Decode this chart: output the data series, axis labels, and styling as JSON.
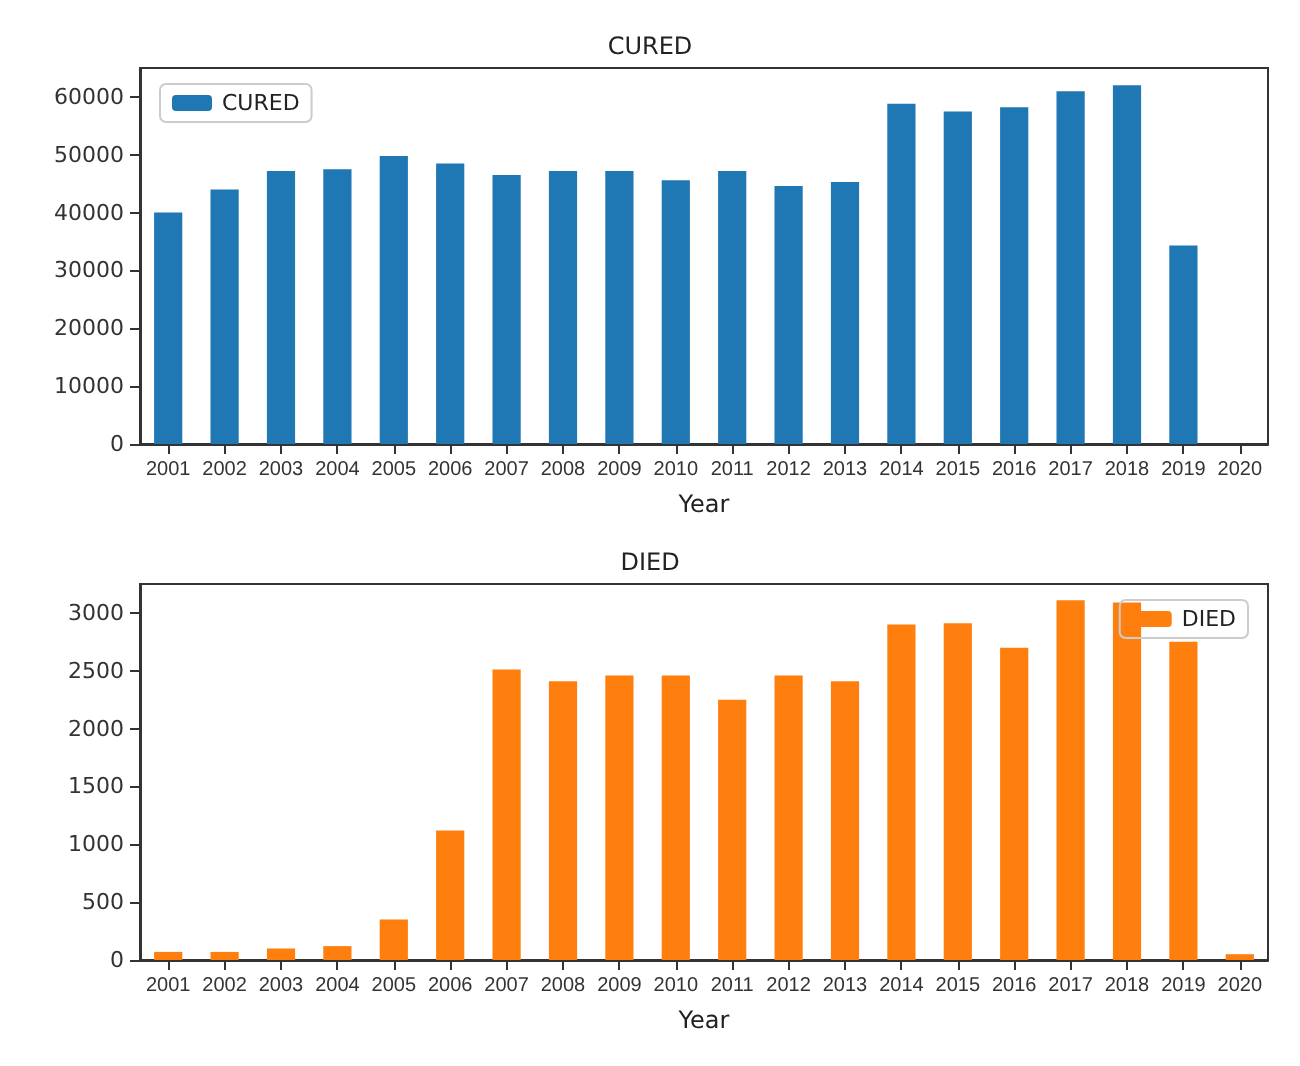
{
  "chart_data": [
    {
      "type": "bar",
      "title": "CURED",
      "xlabel": "Year",
      "categories": [
        "2001",
        "2002",
        "2003",
        "2004",
        "2005",
        "2006",
        "2007",
        "2008",
        "2009",
        "2010",
        "2011",
        "2012",
        "2013",
        "2014",
        "2015",
        "2016",
        "2017",
        "2018",
        "2019",
        "2020"
      ],
      "series": [
        {
          "name": "CURED",
          "color": "#1f77b4",
          "values": [
            40000,
            44000,
            47200,
            47500,
            49800,
            48500,
            46500,
            47200,
            47200,
            45600,
            47200,
            44600,
            45300,
            58800,
            57500,
            58200,
            61000,
            62000,
            34300,
            0
          ]
        }
      ],
      "ylim": [
        0,
        65000
      ],
      "yticks": [
        0,
        10000,
        20000,
        30000,
        40000,
        50000,
        60000
      ],
      "grid": false,
      "legend": "top left"
    },
    {
      "type": "bar",
      "title": "DIED",
      "xlabel": "Year",
      "categories": [
        "2001",
        "2002",
        "2003",
        "2004",
        "2005",
        "2006",
        "2007",
        "2008",
        "2009",
        "2010",
        "2011",
        "2012",
        "2013",
        "2014",
        "2015",
        "2016",
        "2017",
        "2018",
        "2019",
        "2020"
      ],
      "series": [
        {
          "name": "DIED",
          "color": "#ff7f0e",
          "values": [
            70,
            70,
            100,
            120,
            350,
            1120,
            2510,
            2410,
            2460,
            2460,
            2250,
            2460,
            2410,
            2900,
            2910,
            2700,
            3110,
            3090,
            2750,
            50
          ]
        }
      ],
      "ylim": [
        0,
        3250
      ],
      "yticks": [
        0,
        500,
        1000,
        1500,
        2000,
        2500,
        3000
      ],
      "grid": false,
      "legend": "top right"
    }
  ]
}
